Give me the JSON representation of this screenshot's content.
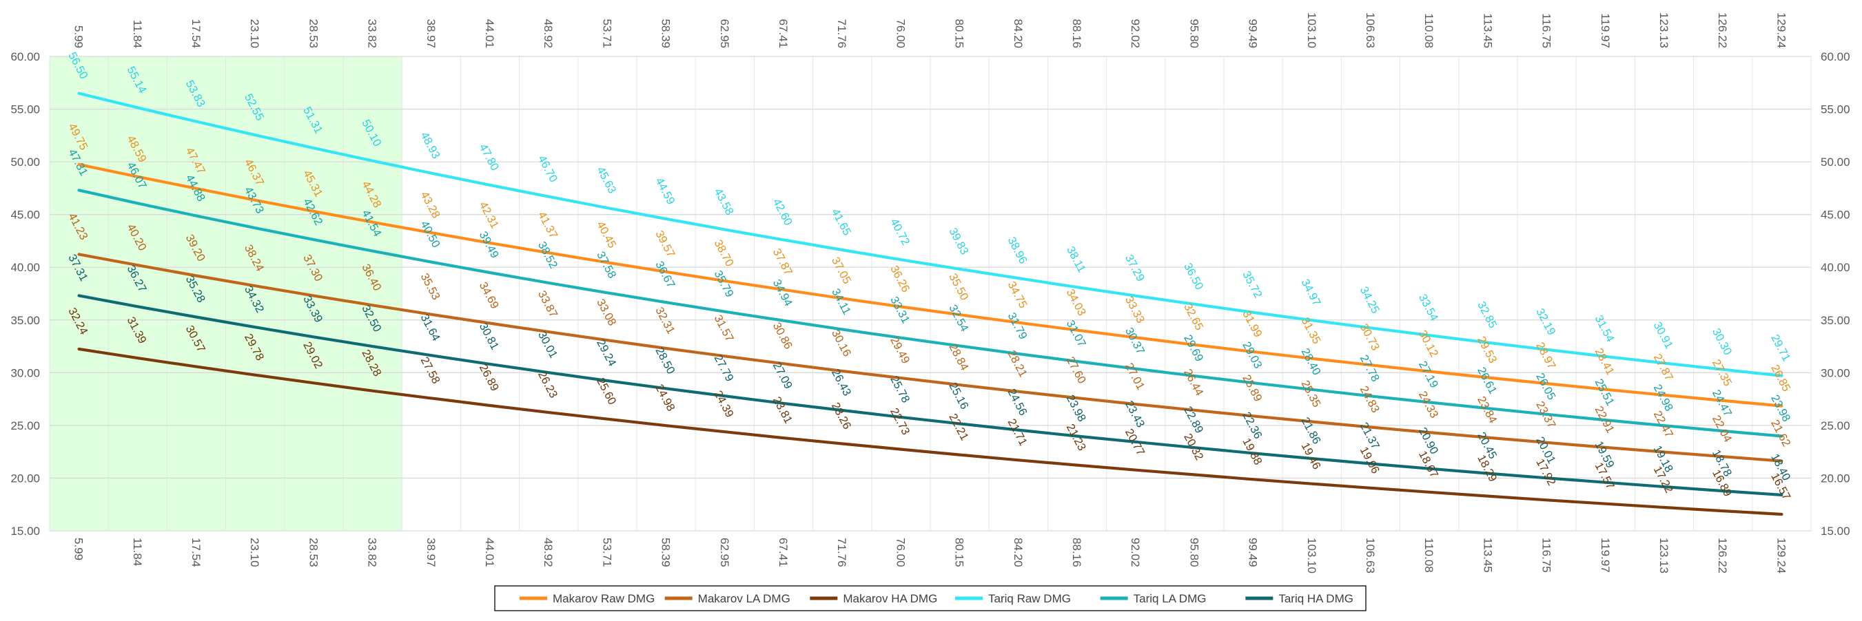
{
  "chart_data": {
    "type": "line",
    "title": "",
    "xlabel": "",
    "ylabel": "",
    "ylim": [
      15,
      60
    ],
    "y_ticks": [
      "15.00",
      "20.00",
      "25.00",
      "30.00",
      "35.00",
      "40.00",
      "45.00",
      "50.00",
      "55.00",
      "60.00"
    ],
    "categories": [
      "5.99",
      "11.84",
      "17.54",
      "23.10",
      "28.53",
      "33.82",
      "38.97",
      "44.01",
      "48.92",
      "53.71",
      "58.39",
      "62.95",
      "67.41",
      "71.76",
      "76.00",
      "80.15",
      "84.20",
      "88.16",
      "92.02",
      "95.80",
      "99.49",
      "103.10",
      "106.63",
      "110.08",
      "113.45",
      "116.75",
      "119.97",
      "123.13",
      "126.22",
      "129.24"
    ],
    "highlight_region": {
      "from_category": 0,
      "to_category": 5,
      "color": "#dfffdf"
    },
    "grid": true,
    "legend_position": "bottom",
    "series": [
      {
        "name": "Makarov Raw DMG",
        "color": "#ff8c1a",
        "label_color": "#e8901e",
        "values": [
          49.75,
          48.59,
          47.47,
          46.37,
          45.31,
          44.28,
          43.28,
          42.31,
          41.37,
          40.45,
          39.57,
          38.7,
          37.87,
          37.05,
          36.26,
          35.5,
          34.75,
          34.03,
          33.33,
          32.65,
          31.99,
          31.35,
          30.73,
          30.12,
          29.53,
          28.97,
          28.41,
          27.87,
          27.35,
          26.85
        ]
      },
      {
        "name": "Makarov LA DMG",
        "color": "#c0651a",
        "label_color": "#b86318",
        "values": [
          41.23,
          40.2,
          39.2,
          38.24,
          37.3,
          36.4,
          35.53,
          34.69,
          33.87,
          33.08,
          32.31,
          31.57,
          30.86,
          30.16,
          29.49,
          28.84,
          28.21,
          27.6,
          27.01,
          26.44,
          25.89,
          25.35,
          24.83,
          24.33,
          23.84,
          23.37,
          22.91,
          22.47,
          22.04,
          21.62
        ]
      },
      {
        "name": "Makarov HA DMG",
        "color": "#7a3a0c",
        "label_color": "#6e3508",
        "values": [
          32.24,
          31.39,
          30.57,
          29.78,
          29.02,
          28.28,
          27.58,
          26.89,
          26.23,
          25.6,
          24.98,
          24.39,
          23.81,
          23.26,
          22.73,
          22.21,
          21.71,
          21.23,
          20.77,
          20.32,
          19.88,
          19.46,
          19.06,
          18.67,
          18.29,
          17.92,
          17.57,
          17.22,
          16.89,
          16.57
        ]
      },
      {
        "name": "Tariq Raw DMG",
        "color": "#33e6f5",
        "label_color": "#27d4e3",
        "values": [
          56.5,
          55.14,
          53.83,
          52.55,
          51.31,
          50.1,
          48.93,
          47.8,
          46.7,
          45.63,
          44.59,
          43.58,
          42.6,
          41.65,
          40.72,
          39.83,
          38.96,
          38.11,
          37.29,
          36.5,
          35.72,
          34.97,
          34.25,
          33.54,
          32.85,
          32.19,
          31.54,
          30.91,
          30.3,
          29.71
        ]
      },
      {
        "name": "Tariq LA DMG",
        "color": "#1ab2b8",
        "label_color": "#159ea3",
        "values": [
          47.31,
          46.07,
          44.88,
          43.73,
          42.62,
          41.54,
          40.5,
          39.49,
          38.52,
          37.58,
          36.67,
          35.79,
          34.94,
          34.11,
          33.31,
          32.54,
          31.79,
          31.07,
          30.37,
          29.69,
          29.03,
          28.4,
          27.78,
          27.19,
          26.61,
          26.05,
          25.51,
          24.98,
          24.47,
          23.98
        ]
      },
      {
        "name": "Tariq HA DMG",
        "color": "#0f6b73",
        "label_color": "#0c5f66",
        "values": [
          37.31,
          36.27,
          35.28,
          34.32,
          33.39,
          32.5,
          31.64,
          30.81,
          30.01,
          29.24,
          28.5,
          27.79,
          27.09,
          26.43,
          25.78,
          25.16,
          24.56,
          23.98,
          23.43,
          22.89,
          22.36,
          21.86,
          21.37,
          20.9,
          20.45,
          20.01,
          19.59,
          19.18,
          18.78,
          18.4
        ]
      }
    ]
  }
}
